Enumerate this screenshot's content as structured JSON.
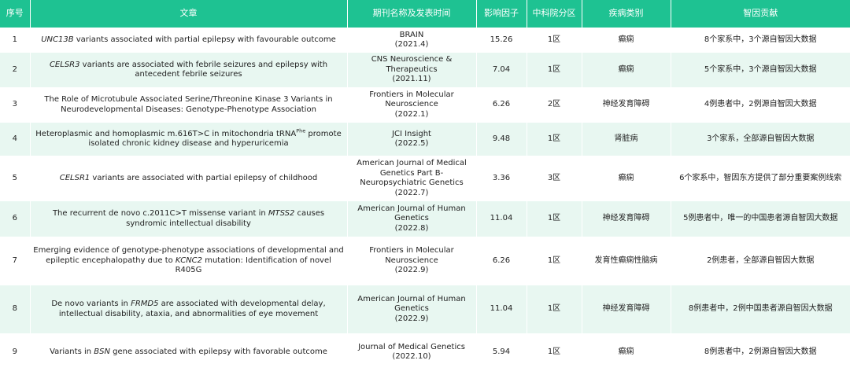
{
  "table": {
    "headers": {
      "index": "序号",
      "article": "文章",
      "journal": "期刊名称及发表时间",
      "impact_factor": "影响因子",
      "cas_zone": "中科院分区",
      "disease": "疾病类别",
      "contribution": "智因贡献"
    },
    "rows": [
      {
        "index": "1",
        "title_pre": "",
        "title_gene": "UNC13B",
        "title_post": " variants associated with partial epilepsy with favourable outcome",
        "journal": "BRAIN",
        "date": "(2021.4)",
        "impact_factor": "15.26",
        "cas_zone": "1区",
        "disease": "癫痫",
        "contribution": "8个家系中，3个源自智因大数据"
      },
      {
        "index": "2",
        "title_pre": "",
        "title_gene": "CELSR3",
        "title_post": " variants are associated with febrile seizures and epilepsy with antecedent febrile seizures",
        "journal": "CNS Neuroscience & Therapeutics",
        "date": "(2021.11)",
        "impact_factor": "7.04",
        "cas_zone": "1区",
        "disease": "癫痫",
        "contribution": "5个家系中，3个源自智因大数据"
      },
      {
        "index": "3",
        "title_pre": "The Role of Microtubule Associated Serine/Threonine Kinase 3 Variants in Neurodevelopmental Diseases: Genotype-Phenotype Association",
        "title_gene": "",
        "title_post": "",
        "journal": "Frontiers in Molecular Neuroscience",
        "date": "(2022.1)",
        "impact_factor": "6.26",
        "cas_zone": "2区",
        "disease": "神经发育障碍",
        "contribution": "4例患者中，2例源自智因大数据"
      },
      {
        "index": "4",
        "title_pre": "Heteroplasmic and homoplasmic m.616T>C in mitochondria tRNA",
        "title_sup": "Phe",
        "title_post": " promote isolated chronic kidney disease and hyperuricemia",
        "journal": "JCI Insight",
        "date": "(2022.5)",
        "impact_factor": "9.48",
        "cas_zone": "1区",
        "disease": "肾脏病",
        "contribution": "3个家系，全部源自智因大数据"
      },
      {
        "index": "5",
        "title_pre": "",
        "title_gene": "CELSR1",
        "title_post": " variants are associated with partial epilepsy of childhood",
        "journal": "American Journal of Medical Genetics Part B-Neuropsychiatric Genetics",
        "date": "(2022.7)",
        "impact_factor": "3.36",
        "cas_zone": "3区",
        "disease": "癫痫",
        "contribution": "6个家系中，智因东方提供了部分重要案例线索"
      },
      {
        "index": "6",
        "title_pre": "The recurrent de novo c.2011C>T missense variant in ",
        "title_gene": "MTSS2",
        "title_post": " causes syndromic intellectual disability",
        "journal": "American Journal of Human Genetics",
        "date": "(2022.8)",
        "impact_factor": "11.04",
        "cas_zone": "1区",
        "disease": "神经发育障碍",
        "contribution": "5例患者中，唯一的中国患者源自智因大数据"
      },
      {
        "index": "7",
        "title_pre": "Emerging evidence of genotype-phenotype associations of developmental and epileptic encephalopathy due to ",
        "title_gene": "KCNC2",
        "title_post": " mutation: Identification of novel R405G",
        "journal": "Frontiers in Molecular Neuroscience",
        "date": "(2022.9)",
        "impact_factor": "6.26",
        "cas_zone": "1区",
        "disease": "发育性癫痫性脑病",
        "contribution": "2例患者，全部源自智因大数据"
      },
      {
        "index": "8",
        "title_pre": "De novo variants in ",
        "title_gene": "FRMD5",
        "title_post": " are associated with developmental delay, intellectual disability, ataxia, and abnormalities of eye movement",
        "journal": "American Journal of Human Genetics",
        "date": "(2022.9)",
        "impact_factor": "11.04",
        "cas_zone": "1区",
        "disease": "神经发育障碍",
        "contribution": "8例患者中，2例中国患者源自智因大数据"
      },
      {
        "index": "9",
        "title_pre": "Variants in ",
        "title_gene": "BSN",
        "title_post": " gene associated with epilepsy with favorable outcome",
        "journal": "Journal of Medical Genetics",
        "date": "(2022.10)",
        "impact_factor": "5.94",
        "cas_zone": "1区",
        "disease": "癫痫",
        "contribution": "8例患者中，2例源自智因大数据"
      }
    ]
  },
  "colors": {
    "header_bg": "#1ec292",
    "header_text": "#ffffff",
    "row_alt_bg": "#e8f7f1",
    "row_bg": "#ffffff"
  }
}
